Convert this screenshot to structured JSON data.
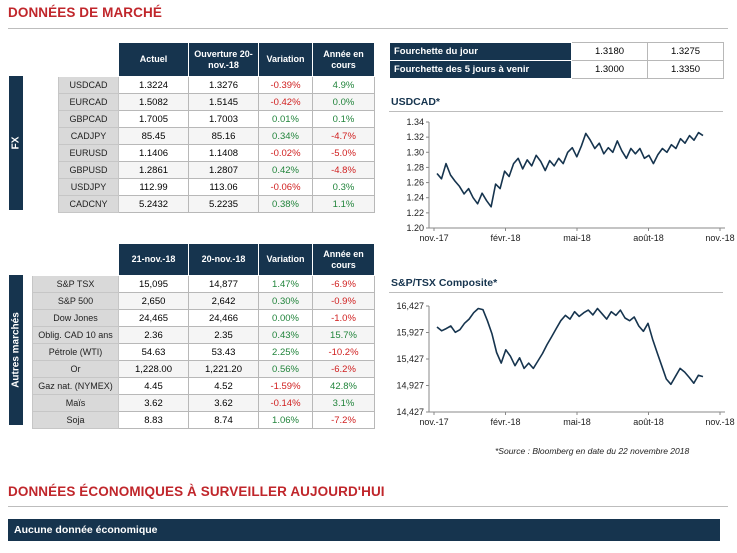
{
  "market_title": "DONNÉES DE MARCHÉ",
  "fx": {
    "side_label": "FX",
    "headers": [
      "Actuel",
      "Ouverture 20-nov.-18",
      "Variation",
      "Année en cours"
    ],
    "rows": [
      {
        "label": "USDCAD",
        "actuel": "1.3224",
        "ouverture": "1.3276",
        "variation": "-0.39%",
        "annee": "4.9%"
      },
      {
        "label": "EURCAD",
        "actuel": "1.5082",
        "ouverture": "1.5145",
        "variation": "-0.42%",
        "annee": "0.0%"
      },
      {
        "label": "GBPCAD",
        "actuel": "1.7005",
        "ouverture": "1.7003",
        "variation": "0.01%",
        "annee": "0.1%"
      },
      {
        "label": "CADJPY",
        "actuel": "85.45",
        "ouverture": "85.16",
        "variation": "0.34%",
        "annee": "-4.7%"
      },
      {
        "label": "EURUSD",
        "actuel": "1.1406",
        "ouverture": "1.1408",
        "variation": "-0.02%",
        "annee": "-5.0%"
      },
      {
        "label": "GBPUSD",
        "actuel": "1.2861",
        "ouverture": "1.2807",
        "variation": "0.42%",
        "annee": "-4.8%"
      },
      {
        "label": "USDJPY",
        "actuel": "112.99",
        "ouverture": "113.06",
        "variation": "-0.06%",
        "annee": "0.3%"
      },
      {
        "label": "CADCNY",
        "actuel": "5.2432",
        "ouverture": "5.2235",
        "variation": "0.38%",
        "annee": "1.1%"
      }
    ]
  },
  "other": {
    "side_label": "Autres marchés",
    "headers": [
      "21-nov.-18",
      "20-nov.-18",
      "Variation",
      "Année en cours"
    ],
    "rows": [
      {
        "label": "S&P TSX",
        "actuel": "15,095",
        "ouverture": "14,877",
        "variation": "1.47%",
        "annee": "-6.9%"
      },
      {
        "label": "S&P 500",
        "actuel": "2,650",
        "ouverture": "2,642",
        "variation": "0.30%",
        "annee": "-0.9%"
      },
      {
        "label": "Dow Jones",
        "actuel": "24,465",
        "ouverture": "24,466",
        "variation": "0.00%",
        "annee": "-1.0%"
      },
      {
        "label": "Oblig. CAD 10 ans",
        "actuel": "2.36",
        "ouverture": "2.35",
        "variation": "0.43%",
        "annee": "15.7%"
      },
      {
        "label": "Pétrole (WTI)",
        "actuel": "54.63",
        "ouverture": "53.43",
        "variation": "2.25%",
        "annee": "-10.2%"
      },
      {
        "label": "Or",
        "actuel": "1,228.00",
        "ouverture": "1,221.20",
        "variation": "0.56%",
        "annee": "-6.2%"
      },
      {
        "label": "Gaz nat. (NYMEX)",
        "actuel": "4.45",
        "ouverture": "4.52",
        "variation": "-1.59%",
        "annee": "42.8%"
      },
      {
        "label": "Maïs",
        "actuel": "3.62",
        "ouverture": "3.62",
        "variation": "-0.14%",
        "annee": "3.1%"
      },
      {
        "label": "Soja",
        "actuel": "8.83",
        "ouverture": "8.74",
        "variation": "1.06%",
        "annee": "-7.2%"
      }
    ]
  },
  "ranges": [
    {
      "label": "Fourchette du jour",
      "low": "1.3180",
      "high": "1.3275"
    },
    {
      "label": "Fourchette des 5 jours à venir",
      "low": "1.3000",
      "high": "1.3350"
    }
  ],
  "colors": {
    "navy": "#16344e",
    "red": "#c0262b",
    "pos": "#21843b",
    "neg": "#d01f1f"
  },
  "chart_data": [
    {
      "type": "line",
      "title": "USDCAD*",
      "x_ticks": [
        "nov.-17",
        "févr.-18",
        "mai-18",
        "août-18",
        "nov.-18"
      ],
      "y_ticks": [
        "1.20",
        "1.22",
        "1.24",
        "1.26",
        "1.28",
        "1.30",
        "1.32",
        "1.34"
      ],
      "ylim": [
        1.2,
        1.34
      ],
      "grid": false,
      "series": [
        {
          "values": [
            1.272,
            1.265,
            1.285,
            1.27,
            1.262,
            1.255,
            1.245,
            1.252,
            1.24,
            1.232,
            1.246,
            1.236,
            1.228,
            1.258,
            1.252,
            1.275,
            1.268,
            1.285,
            1.292,
            1.278,
            1.29,
            1.282,
            1.296,
            1.288,
            1.276,
            1.289,
            1.282,
            1.292,
            1.285,
            1.3,
            1.306,
            1.294,
            1.308,
            1.325,
            1.316,
            1.305,
            1.312,
            1.298,
            1.306,
            1.3,
            1.315,
            1.302,
            1.292,
            1.305,
            1.298,
            1.305,
            1.292,
            1.296,
            1.285,
            1.297,
            1.305,
            1.3,
            1.31,
            1.305,
            1.318,
            1.312,
            1.322,
            1.316,
            1.326,
            1.322
          ]
        }
      ]
    },
    {
      "type": "line",
      "title": "S&P/TSX Composite*",
      "x_ticks": [
        "nov.-17",
        "févr.-18",
        "mai-18",
        "août-18",
        "nov.-18"
      ],
      "y_ticks": [
        "14,427",
        "14,927",
        "15,427",
        "15,927",
        "16,427"
      ],
      "ylim": [
        14427,
        16427
      ],
      "grid": false,
      "series": [
        {
          "values": [
            16030,
            15960,
            16000,
            16050,
            15930,
            15980,
            16100,
            16180,
            16300,
            16380,
            16360,
            16150,
            15900,
            15550,
            15350,
            15600,
            15480,
            15300,
            15450,
            15250,
            15350,
            15250,
            15390,
            15530,
            15700,
            15850,
            16000,
            16150,
            16250,
            16180,
            16320,
            16230,
            16300,
            16350,
            16260,
            16380,
            16280,
            16180,
            16320,
            16250,
            16350,
            16200,
            16150,
            16220,
            16050,
            15950,
            16100,
            15800,
            15550,
            15300,
            15050,
            14950,
            15100,
            15250,
            15180,
            15080,
            14970,
            15120,
            15095
          ]
        }
      ]
    }
  ],
  "source_note": "*Source : Bloomberg en date du  22 novembre 2018",
  "eco_title": "DONNÉES ÉCONOMIQUES À SURVEILLER AUJOURD'HUI",
  "eco_bar": "Aucune donnée économique"
}
